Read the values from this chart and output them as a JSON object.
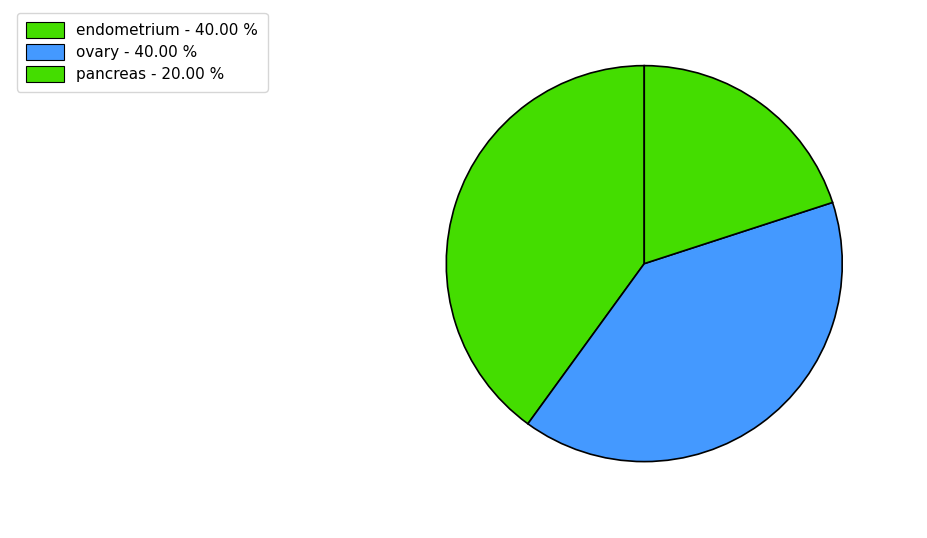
{
  "labels": [
    "endometrium",
    "ovary",
    "pancreas"
  ],
  "values": [
    40.0,
    40.0,
    20.0
  ],
  "colors": [
    "#44dd00",
    "#4499ff",
    "#44dd00"
  ],
  "legend_labels": [
    "endometrium - 40.00 %",
    "ovary - 40.00 %",
    "pancreas - 20.00 %"
  ],
  "legend_colors": [
    "#44dd00",
    "#4499ff",
    "#44dd00"
  ],
  "startangle": 90,
  "background_color": "#ffffff",
  "figsize": [
    9.27,
    5.38
  ],
  "dpi": 100
}
